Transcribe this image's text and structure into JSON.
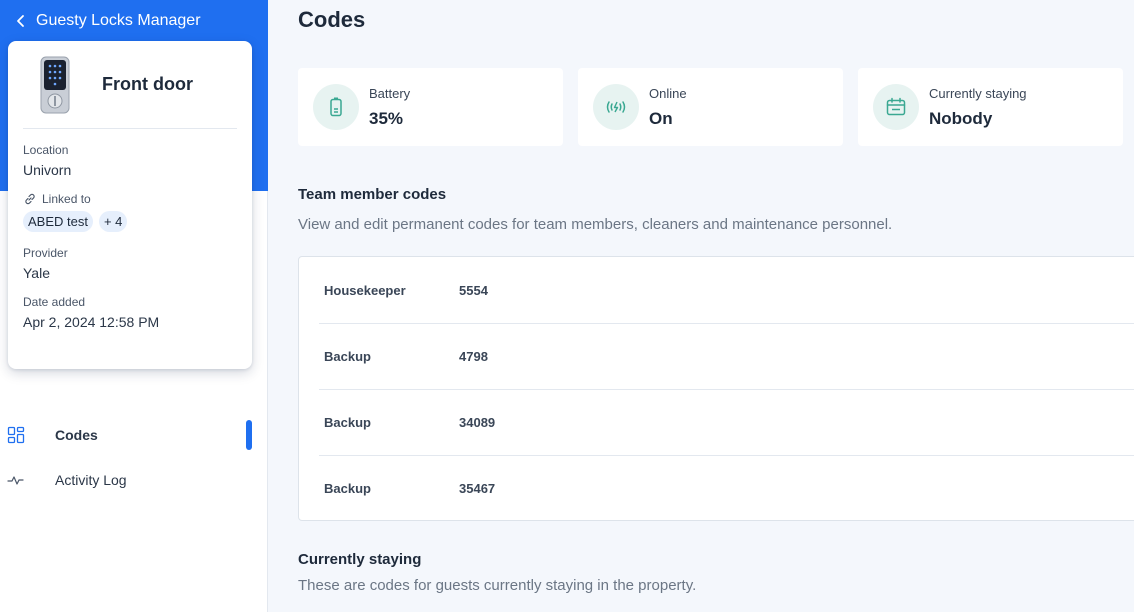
{
  "app": {
    "back_label": "Guesty Locks Manager"
  },
  "device": {
    "name": "Front door",
    "location_label": "Location",
    "location": "Univorn",
    "linked_label": "Linked to",
    "linked_chip": "ABED test",
    "linked_more": "+ 4",
    "provider_label": "Provider",
    "provider": "Yale",
    "date_label": "Date added",
    "date": "Apr 2, 2024 12:58 PM"
  },
  "nav": {
    "items": [
      {
        "label": "Codes",
        "icon": "grid-icon",
        "active": true
      },
      {
        "label": "Activity Log",
        "icon": "activity-icon",
        "active": false
      }
    ]
  },
  "main": {
    "title": "Codes",
    "stats": [
      {
        "label": "Battery",
        "value": "35%",
        "icon": "battery-icon"
      },
      {
        "label": "Online",
        "value": "On",
        "icon": "signal-icon"
      },
      {
        "label": "Currently staying",
        "value": "Nobody",
        "icon": "calendar-icon"
      }
    ],
    "team": {
      "title": "Team member codes",
      "description": "View and edit permanent codes for team members, cleaners and maintenance personnel.",
      "rows": [
        {
          "name": "Housekeeper",
          "code": "5554"
        },
        {
          "name": "Backup",
          "code": "4798"
        },
        {
          "name": "Backup",
          "code": "34089"
        },
        {
          "name": "Backup",
          "code": "35467"
        }
      ]
    },
    "staying": {
      "title": "Currently staying",
      "description": "These are codes for guests currently staying in the property."
    }
  },
  "colors": {
    "accent": "#1f6ff0",
    "teal": "#3aa892",
    "background": "#f4f7fc"
  }
}
